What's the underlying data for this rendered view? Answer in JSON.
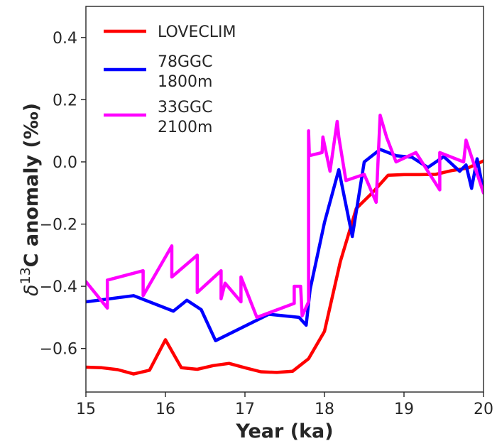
{
  "chart_data": {
    "type": "line",
    "xlabel": "Year (ka)",
    "ylabel_symbol": "δ",
    "ylabel_superscript": "13",
    "ylabel_rest": "C anomaly (‰)",
    "xlim": [
      15,
      20
    ],
    "ylim": [
      -0.74,
      0.5
    ],
    "xticks": [
      15,
      16,
      17,
      18,
      19,
      20
    ],
    "xtick_labels": [
      "15",
      "16",
      "17",
      "18",
      "19",
      "20"
    ],
    "yticks": [
      0.4,
      0.2,
      0.0,
      -0.2,
      -0.4,
      -0.6
    ],
    "ytick_labels": [
      "0.4",
      "0.2",
      "0.0",
      "−0.2",
      "−0.4",
      "−0.6"
    ],
    "grid": false,
    "legend_position": "top-left",
    "series": [
      {
        "name": "LOVECLIM",
        "label_lines": [
          "LOVECLIM"
        ],
        "color": "#ff0000",
        "x": [
          15.0,
          15.2,
          15.4,
          15.6,
          15.8,
          16.0,
          16.2,
          16.4,
          16.6,
          16.8,
          17.0,
          17.2,
          17.4,
          17.6,
          17.8,
          18.0,
          18.2,
          18.4,
          18.6,
          18.8,
          19.0,
          19.2,
          19.4,
          19.6,
          19.8,
          20.0
        ],
        "y": [
          -0.66,
          -0.662,
          -0.668,
          -0.682,
          -0.67,
          -0.572,
          -0.662,
          -0.667,
          -0.655,
          -0.648,
          -0.662,
          -0.675,
          -0.677,
          -0.673,
          -0.633,
          -0.545,
          -0.32,
          -0.15,
          -0.1,
          -0.043,
          -0.041,
          -0.041,
          -0.04,
          -0.028,
          -0.02,
          0.003
        ]
      },
      {
        "name": "78GGC 1800m",
        "label_lines": [
          "78GGC",
          "1800m"
        ],
        "color": "#0000ff",
        "x": [
          15.0,
          15.6,
          16.1,
          16.27,
          16.45,
          16.63,
          17.3,
          17.68,
          17.77,
          17.82,
          18.0,
          18.18,
          18.35,
          18.5,
          18.7,
          18.9,
          19.1,
          19.3,
          19.5,
          19.7,
          19.78,
          19.85,
          19.92,
          20.0
        ],
        "y": [
          -0.45,
          -0.43,
          -0.48,
          -0.445,
          -0.475,
          -0.575,
          -0.49,
          -0.5,
          -0.525,
          -0.41,
          -0.195,
          -0.025,
          -0.24,
          0.0,
          0.04,
          0.02,
          0.015,
          -0.018,
          0.017,
          -0.03,
          -0.01,
          -0.085,
          0.01,
          -0.095
        ]
      },
      {
        "name": "33GGC 2100m",
        "label_lines": [
          "33GGC",
          "2100m"
        ],
        "color": "#ff00ff",
        "x": [
          15.0,
          15.27,
          15.27,
          15.72,
          15.72,
          16.08,
          16.08,
          16.4,
          16.4,
          16.7,
          16.7,
          16.75,
          16.95,
          16.95,
          17.15,
          17.62,
          17.62,
          17.7,
          17.72,
          17.8,
          17.8,
          17.81,
          17.97,
          17.98,
          18.07,
          18.16,
          18.18,
          18.27,
          18.5,
          18.65,
          18.7,
          18.78,
          18.9,
          19.15,
          19.45,
          19.45,
          19.75,
          19.78,
          20.0
        ],
        "y": [
          -0.385,
          -0.47,
          -0.38,
          -0.35,
          -0.43,
          -0.27,
          -0.37,
          -0.3,
          -0.42,
          -0.35,
          -0.44,
          -0.39,
          -0.45,
          -0.37,
          -0.5,
          -0.455,
          -0.4,
          -0.4,
          -0.495,
          -0.45,
          0.1,
          0.02,
          0.03,
          0.08,
          -0.03,
          0.13,
          0.08,
          -0.06,
          -0.04,
          -0.13,
          0.15,
          0.08,
          0.0,
          0.03,
          -0.09,
          0.03,
          0.0,
          0.07,
          -0.1
        ]
      }
    ]
  }
}
